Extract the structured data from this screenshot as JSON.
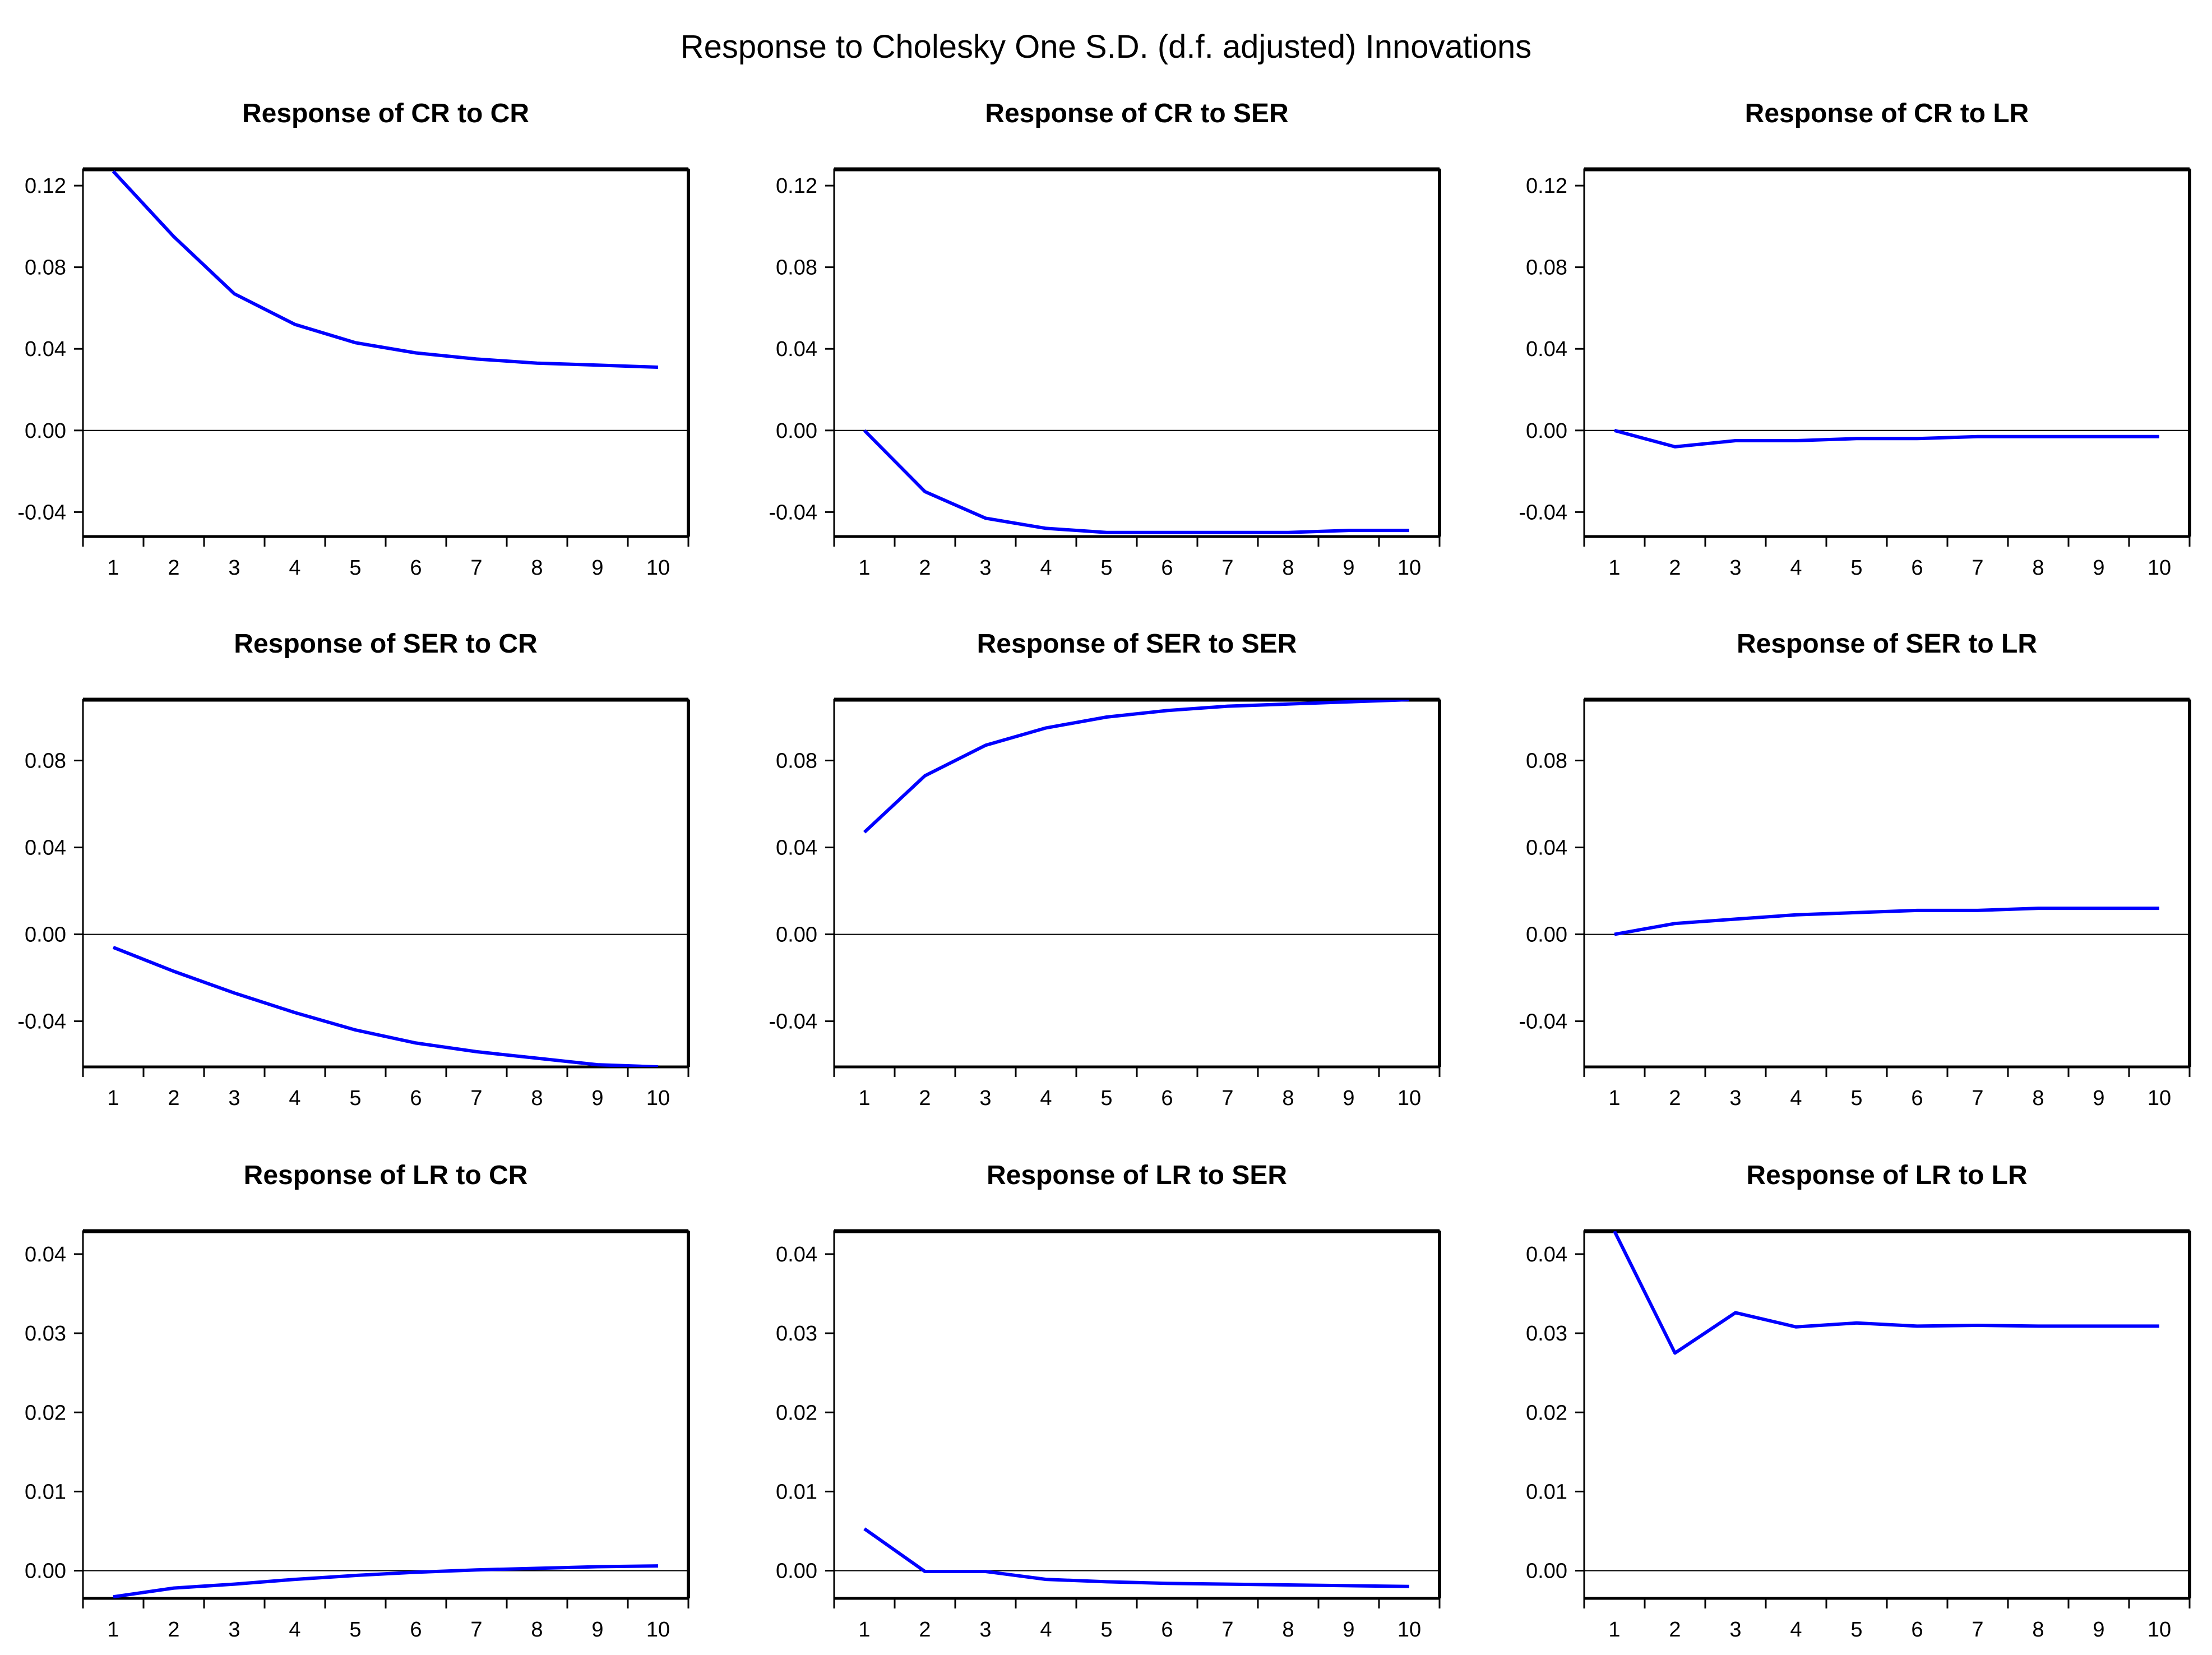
{
  "figure": {
    "title": "Response to Cholesky One S.D. (d.f. adjusted) Innovations",
    "line_color": "#0000ff",
    "axis_color": "#000000"
  },
  "chart_data": [
    {
      "type": "line",
      "title": "Response of CR to CR",
      "x": [
        1,
        2,
        3,
        4,
        5,
        6,
        7,
        8,
        9,
        10
      ],
      "series": [
        {
          "name": "CR to CR",
          "values": [
            0.127,
            0.095,
            0.067,
            0.052,
            0.043,
            0.038,
            0.035,
            0.033,
            0.032,
            0.031
          ]
        }
      ],
      "ylim": [
        -0.052,
        0.128
      ],
      "yticks": [
        0.12,
        0.08,
        0.04,
        0.0,
        -0.04
      ],
      "ytick_labels": [
        "0.12",
        "0.08",
        "0.04",
        "0.00",
        "-0.04"
      ],
      "xlim": [
        0.5,
        10.5
      ],
      "xtick_labels": [
        "1",
        "2",
        "3",
        "4",
        "5",
        "6",
        "7",
        "8",
        "9",
        "10"
      ]
    },
    {
      "type": "line",
      "title": "Response of CR to SER",
      "x": [
        1,
        2,
        3,
        4,
        5,
        6,
        7,
        8,
        9,
        10
      ],
      "series": [
        {
          "name": "CR to SER",
          "values": [
            0.0,
            -0.03,
            -0.043,
            -0.048,
            -0.05,
            -0.05,
            -0.05,
            -0.05,
            -0.049,
            -0.049
          ]
        }
      ],
      "ylim": [
        -0.052,
        0.128
      ],
      "yticks": [
        0.12,
        0.08,
        0.04,
        0.0,
        -0.04
      ],
      "ytick_labels": [
        "0.12",
        "0.08",
        "0.04",
        "0.00",
        "-0.04"
      ],
      "xlim": [
        0.5,
        10.5
      ],
      "xtick_labels": [
        "1",
        "2",
        "3",
        "4",
        "5",
        "6",
        "7",
        "8",
        "9",
        "10"
      ]
    },
    {
      "type": "line",
      "title": "Response of CR to LR",
      "x": [
        1,
        2,
        3,
        4,
        5,
        6,
        7,
        8,
        9,
        10
      ],
      "series": [
        {
          "name": "CR to LR",
          "values": [
            0.0,
            -0.008,
            -0.005,
            -0.005,
            -0.004,
            -0.004,
            -0.003,
            -0.003,
            -0.003,
            -0.003
          ]
        }
      ],
      "ylim": [
        -0.052,
        0.128
      ],
      "yticks": [
        0.12,
        0.08,
        0.04,
        0.0,
        -0.04
      ],
      "ytick_labels": [
        "0.12",
        "0.08",
        "0.04",
        "0.00",
        "-0.04"
      ],
      "xlim": [
        0.5,
        10.5
      ],
      "xtick_labels": [
        "1",
        "2",
        "3",
        "4",
        "5",
        "6",
        "7",
        "8",
        "9",
        "10"
      ]
    },
    {
      "type": "line",
      "title": "Response of SER to CR",
      "x": [
        1,
        2,
        3,
        4,
        5,
        6,
        7,
        8,
        9,
        10
      ],
      "series": [
        {
          "name": "SER to CR",
          "values": [
            -0.006,
            -0.017,
            -0.027,
            -0.036,
            -0.044,
            -0.05,
            -0.054,
            -0.057,
            -0.06,
            -0.061
          ]
        }
      ],
      "ylim": [
        -0.061,
        0.108
      ],
      "yticks": [
        0.08,
        0.04,
        0.0,
        -0.04
      ],
      "ytick_labels": [
        "0.08",
        "0.04",
        "0.00",
        "-0.04"
      ],
      "xlim": [
        0.5,
        10.5
      ],
      "xtick_labels": [
        "1",
        "2",
        "3",
        "4",
        "5",
        "6",
        "7",
        "8",
        "9",
        "10"
      ]
    },
    {
      "type": "line",
      "title": "Response of SER to SER",
      "x": [
        1,
        2,
        3,
        4,
        5,
        6,
        7,
        8,
        9,
        10
      ],
      "series": [
        {
          "name": "SER to SER",
          "values": [
            0.047,
            0.073,
            0.087,
            0.095,
            0.1,
            0.103,
            0.105,
            0.106,
            0.107,
            0.108
          ]
        }
      ],
      "ylim": [
        -0.061,
        0.108
      ],
      "yticks": [
        0.08,
        0.04,
        0.0,
        -0.04
      ],
      "ytick_labels": [
        "0.08",
        "0.04",
        "0.00",
        "-0.04"
      ],
      "xlim": [
        0.5,
        10.5
      ],
      "xtick_labels": [
        "1",
        "2",
        "3",
        "4",
        "5",
        "6",
        "7",
        "8",
        "9",
        "10"
      ]
    },
    {
      "type": "line",
      "title": "Response of SER to LR",
      "x": [
        1,
        2,
        3,
        4,
        5,
        6,
        7,
        8,
        9,
        10
      ],
      "series": [
        {
          "name": "SER to LR",
          "values": [
            0.0,
            0.005,
            0.007,
            0.009,
            0.01,
            0.011,
            0.011,
            0.012,
            0.012,
            0.012
          ]
        }
      ],
      "ylim": [
        -0.061,
        0.108
      ],
      "yticks": [
        0.08,
        0.04,
        0.0,
        -0.04
      ],
      "ytick_labels": [
        "0.08",
        "0.04",
        "0.00",
        "-0.04"
      ],
      "xlim": [
        0.5,
        10.5
      ],
      "xtick_labels": [
        "1",
        "2",
        "3",
        "4",
        "5",
        "6",
        "7",
        "8",
        "9",
        "10"
      ]
    },
    {
      "type": "line",
      "title": "Response of LR to CR",
      "x": [
        1,
        2,
        3,
        4,
        5,
        6,
        7,
        8,
        9,
        10
      ],
      "series": [
        {
          "name": "LR to CR",
          "values": [
            -0.0033,
            -0.0022,
            -0.0017,
            -0.0011,
            -0.0006,
            -0.0002,
            0.0001,
            0.0003,
            0.0005,
            0.0006
          ]
        }
      ],
      "ylim": [
        -0.0035,
        0.0429
      ],
      "yticks": [
        0.04,
        0.03,
        0.02,
        0.01,
        0.0
      ],
      "ytick_labels": [
        "0.04",
        "0.03",
        "0.02",
        "0.01",
        "0.00"
      ],
      "xlim": [
        0.5,
        10.5
      ],
      "xtick_labels": [
        "1",
        "2",
        "3",
        "4",
        "5",
        "6",
        "7",
        "8",
        "9",
        "10"
      ]
    },
    {
      "type": "line",
      "title": "Response of LR to SER",
      "x": [
        1,
        2,
        3,
        4,
        5,
        6,
        7,
        8,
        9,
        10
      ],
      "series": [
        {
          "name": "LR to SER",
          "values": [
            0.0053,
            -0.0001,
            -0.0001,
            -0.0011,
            -0.0014,
            -0.0016,
            -0.0017,
            -0.0018,
            -0.0019,
            -0.002
          ]
        }
      ],
      "ylim": [
        -0.0035,
        0.0429
      ],
      "yticks": [
        0.04,
        0.03,
        0.02,
        0.01,
        0.0
      ],
      "ytick_labels": [
        "0.04",
        "0.03",
        "0.02",
        "0.01",
        "0.00"
      ],
      "xlim": [
        0.5,
        10.5
      ],
      "xtick_labels": [
        "1",
        "2",
        "3",
        "4",
        "5",
        "6",
        "7",
        "8",
        "9",
        "10"
      ]
    },
    {
      "type": "line",
      "title": "Response of LR to LR",
      "x": [
        1,
        2,
        3,
        4,
        5,
        6,
        7,
        8,
        9,
        10
      ],
      "series": [
        {
          "name": "LR to LR",
          "values": [
            0.0429,
            0.0275,
            0.0326,
            0.0308,
            0.0313,
            0.0309,
            0.031,
            0.0309,
            0.0309,
            0.0309
          ]
        }
      ],
      "ylim": [
        -0.0035,
        0.0429
      ],
      "yticks": [
        0.04,
        0.03,
        0.02,
        0.01,
        0.0
      ],
      "ytick_labels": [
        "0.04",
        "0.03",
        "0.02",
        "0.01",
        "0.00"
      ],
      "xlim": [
        0.5,
        10.5
      ],
      "xtick_labels": [
        "1",
        "2",
        "3",
        "4",
        "5",
        "6",
        "7",
        "8",
        "9",
        "10"
      ]
    }
  ]
}
